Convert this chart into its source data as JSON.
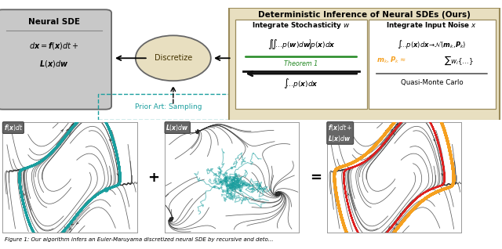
{
  "title": "Deterministic Inference of Neural SDEs (Ours)",
  "fig_width": 6.4,
  "fig_height": 3.18,
  "bg_color": "#ffffff",
  "top_box_bg": "#e8dfc0",
  "neural_sde_label": "Neural SDE",
  "discretize_label": "Discretize",
  "prior_art_label": "Prior Art: Sampling",
  "integrate_w_title": "Integrate Stochasticity $w$",
  "theorem1_label": "Theorem 1",
  "integrate_x_title": "Integrate Input Noise $x$",
  "qmc_label": "Quasi-Monte Carlo",
  "teal_color": "#1a9e9e",
  "orange_color": "#f5a020",
  "red_color": "#dd2020",
  "green_color": "#228822",
  "gray_box": "#666666",
  "caption": "Figure 1: Our algorithm infers an Euler-Maruyama discretized neural SDE by recursive and deto..."
}
